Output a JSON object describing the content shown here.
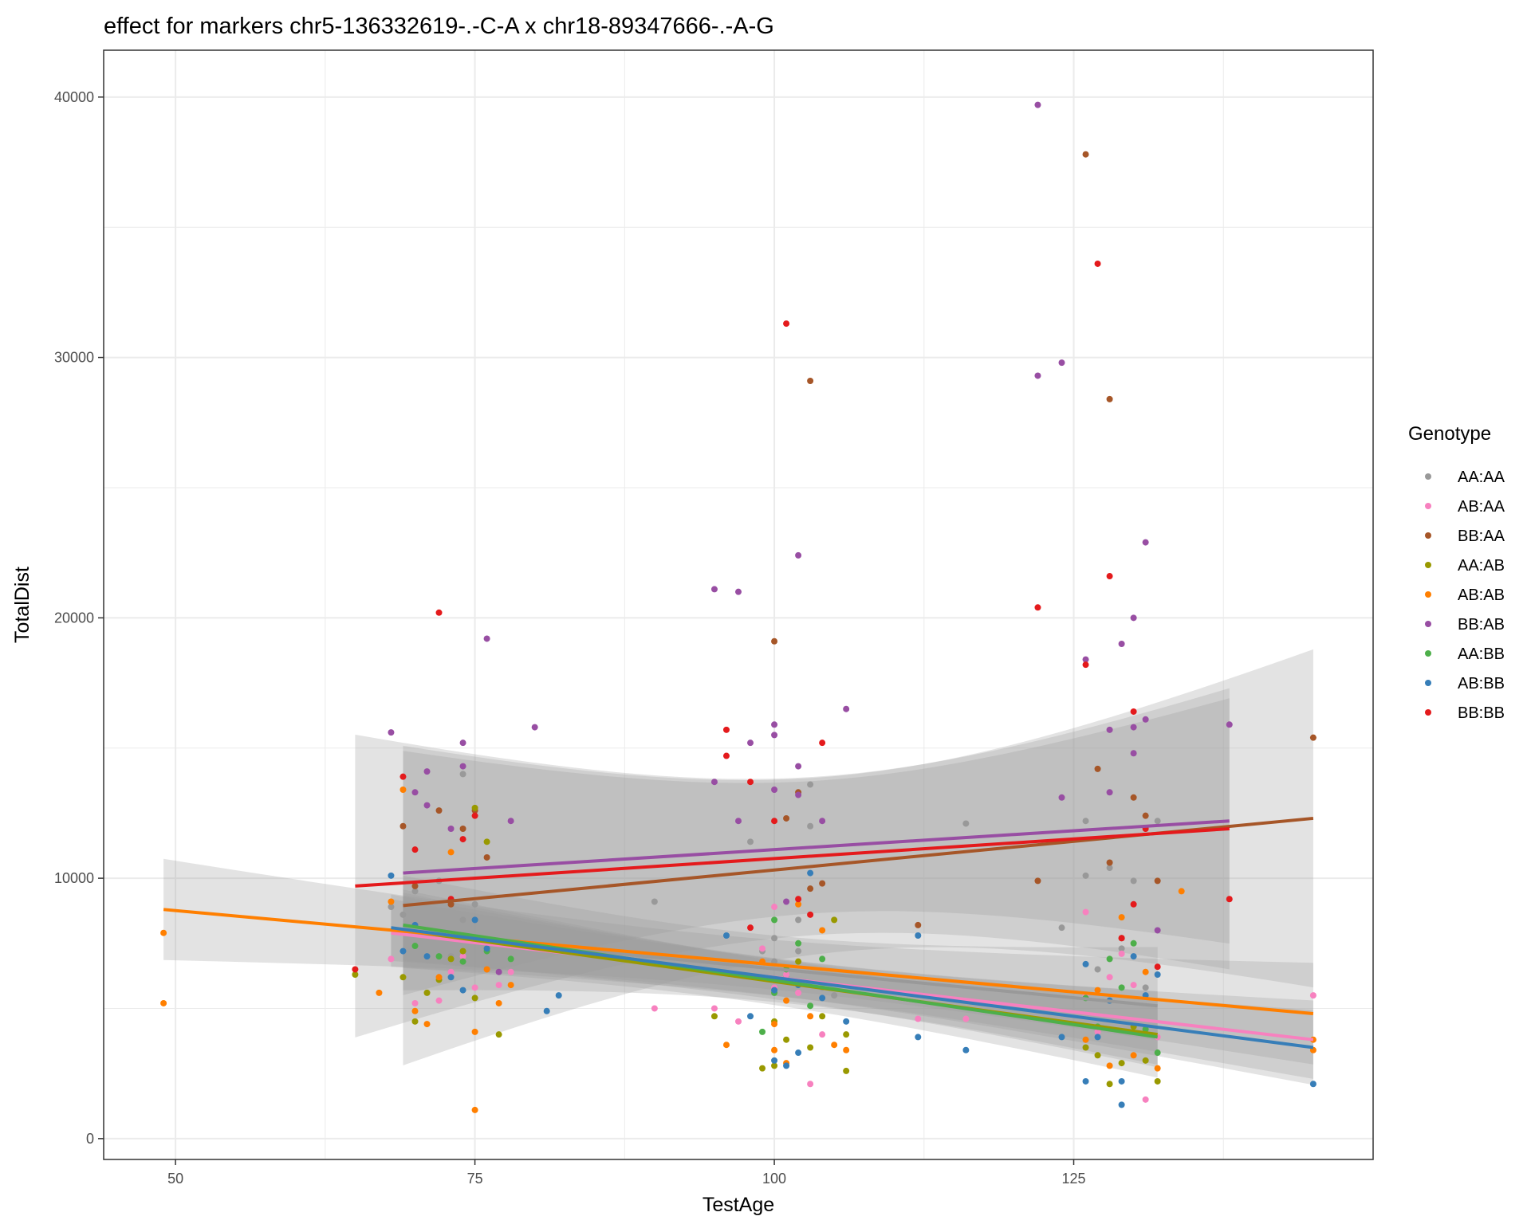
{
  "chart_data": {
    "type": "scatter",
    "title": "effect for markers chr5-136332619-.-C-A x chr18-89347666-.-A-G",
    "xlabel": "TestAge",
    "ylabel": "TotalDist",
    "xlim": [
      44,
      150
    ],
    "ylim": [
      -800,
      41800
    ],
    "x_ticks": [
      50,
      75,
      100,
      125
    ],
    "y_ticks": [
      0,
      10000,
      20000,
      30000,
      40000
    ],
    "grid": true,
    "legend": {
      "title": "Genotype",
      "position": "right"
    },
    "series": [
      {
        "name": "AA:AA",
        "color": "#999999",
        "points": [
          [
            68,
            8900
          ],
          [
            69,
            8600
          ],
          [
            70,
            9500
          ],
          [
            71,
            7800
          ],
          [
            72,
            9900
          ],
          [
            73,
            7000
          ],
          [
            74,
            8400
          ],
          [
            74,
            14000
          ],
          [
            75,
            9000
          ],
          [
            76,
            7600
          ],
          [
            90,
            9100
          ],
          [
            98,
            11400
          ],
          [
            99,
            7200
          ],
          [
            100,
            7700
          ],
          [
            100,
            6800
          ],
          [
            101,
            6200
          ],
          [
            102,
            8400
          ],
          [
            102,
            7200
          ],
          [
            103,
            13600
          ],
          [
            103,
            12000
          ],
          [
            104,
            5800
          ],
          [
            105,
            5500
          ],
          [
            116,
            12100
          ],
          [
            124,
            8100
          ],
          [
            126,
            10100
          ],
          [
            126,
            12200
          ],
          [
            127,
            6500
          ],
          [
            128,
            10400
          ],
          [
            129,
            7300
          ],
          [
            130,
            9900
          ],
          [
            131,
            5800
          ],
          [
            132,
            12200
          ]
        ],
        "fit": {
          "x": [
            69,
            132
          ],
          "y": [
            7900,
            5100
          ]
        }
      },
      {
        "name": "AB:AA",
        "color": "#f781bf",
        "points": [
          [
            68,
            6900
          ],
          [
            70,
            5200
          ],
          [
            72,
            5300
          ],
          [
            73,
            6400
          ],
          [
            74,
            7000
          ],
          [
            75,
            5800
          ],
          [
            77,
            5900
          ],
          [
            78,
            6400
          ],
          [
            90,
            5000
          ],
          [
            95,
            5000
          ],
          [
            97,
            4500
          ],
          [
            99,
            7300
          ],
          [
            100,
            8900
          ],
          [
            100,
            5800
          ],
          [
            101,
            6300
          ],
          [
            102,
            5600
          ],
          [
            103,
            2100
          ],
          [
            104,
            4000
          ],
          [
            112,
            4600
          ],
          [
            116,
            4600
          ],
          [
            126,
            8700
          ],
          [
            126,
            5500
          ],
          [
            127,
            4100
          ],
          [
            128,
            6200
          ],
          [
            129,
            7100
          ],
          [
            130,
            5900
          ],
          [
            131,
            1500
          ],
          [
            132,
            3900
          ],
          [
            145,
            5500
          ]
        ],
        "fit": {
          "x": [
            68,
            145
          ],
          "y": [
            7900,
            3800
          ]
        }
      },
      {
        "name": "BB:AA",
        "color": "#a65628",
        "points": [
          [
            69,
            12000
          ],
          [
            70,
            9700
          ],
          [
            72,
            12600
          ],
          [
            73,
            9000
          ],
          [
            74,
            11900
          ],
          [
            75,
            12600
          ],
          [
            76,
            10800
          ],
          [
            100,
            19100
          ],
          [
            101,
            12300
          ],
          [
            102,
            13300
          ],
          [
            103,
            29100
          ],
          [
            103,
            9600
          ],
          [
            104,
            9800
          ],
          [
            112,
            8200
          ],
          [
            122,
            9900
          ],
          [
            126,
            37800
          ],
          [
            127,
            14200
          ],
          [
            128,
            28400
          ],
          [
            128,
            10600
          ],
          [
            129,
            7700
          ],
          [
            130,
            13100
          ],
          [
            131,
            12400
          ],
          [
            132,
            9900
          ],
          [
            145,
            15400
          ]
        ],
        "fit": {
          "x": [
            69,
            145
          ],
          "y": [
            8950,
            12300
          ]
        }
      },
      {
        "name": "AA:AB",
        "color": "#999900",
        "points": [
          [
            65,
            6300
          ],
          [
            69,
            6200
          ],
          [
            70,
            4500
          ],
          [
            71,
            5600
          ],
          [
            72,
            6100
          ],
          [
            73,
            6900
          ],
          [
            74,
            7200
          ],
          [
            75,
            5400
          ],
          [
            75,
            12700
          ],
          [
            76,
            11400
          ],
          [
            77,
            4000
          ],
          [
            95,
            4700
          ],
          [
            99,
            2700
          ],
          [
            100,
            2800
          ],
          [
            100,
            4500
          ],
          [
            101,
            3800
          ],
          [
            102,
            6800
          ],
          [
            103,
            3500
          ],
          [
            104,
            4700
          ],
          [
            105,
            8400
          ],
          [
            106,
            2600
          ],
          [
            106,
            4000
          ],
          [
            126,
            3500
          ],
          [
            127,
            3200
          ],
          [
            128,
            2100
          ],
          [
            129,
            2900
          ],
          [
            130,
            4300
          ],
          [
            131,
            3000
          ],
          [
            132,
            2200
          ]
        ],
        "fit": {
          "x": [
            69,
            132
          ],
          "y": [
            8000,
            4000
          ]
        }
      },
      {
        "name": "AB:AB",
        "color": "#ff7f00",
        "points": [
          [
            49,
            7900
          ],
          [
            49,
            5200
          ],
          [
            67,
            5600
          ],
          [
            68,
            9100
          ],
          [
            69,
            13400
          ],
          [
            70,
            4900
          ],
          [
            71,
            4400
          ],
          [
            72,
            6200
          ],
          [
            73,
            11000
          ],
          [
            74,
            7800
          ],
          [
            75,
            1100
          ],
          [
            75,
            4100
          ],
          [
            76,
            6500
          ],
          [
            77,
            5200
          ],
          [
            78,
            5900
          ],
          [
            96,
            3600
          ],
          [
            99,
            6800
          ],
          [
            100,
            4400
          ],
          [
            100,
            3400
          ],
          [
            101,
            5300
          ],
          [
            101,
            2900
          ],
          [
            102,
            9000
          ],
          [
            103,
            4700
          ],
          [
            104,
            8000
          ],
          [
            105,
            3600
          ],
          [
            106,
            3400
          ],
          [
            126,
            3800
          ],
          [
            127,
            5700
          ],
          [
            128,
            2800
          ],
          [
            129,
            8500
          ],
          [
            130,
            3200
          ],
          [
            131,
            6400
          ],
          [
            132,
            2700
          ],
          [
            134,
            9500
          ],
          [
            145,
            3800
          ],
          [
            145,
            3400
          ]
        ],
        "fit": {
          "x": [
            49,
            145
          ],
          "y": [
            8800,
            4800
          ]
        }
      },
      {
        "name": "BB:AB",
        "color": "#984ea3",
        "points": [
          [
            68,
            15600
          ],
          [
            70,
            13300
          ],
          [
            71,
            14100
          ],
          [
            71,
            12800
          ],
          [
            73,
            11900
          ],
          [
            74,
            15200
          ],
          [
            74,
            14300
          ],
          [
            76,
            19200
          ],
          [
            77,
            6400
          ],
          [
            78,
            12200
          ],
          [
            80,
            15800
          ],
          [
            95,
            21100
          ],
          [
            95,
            13700
          ],
          [
            97,
            21000
          ],
          [
            97,
            12200
          ],
          [
            98,
            15200
          ],
          [
            100,
            15500
          ],
          [
            100,
            15900
          ],
          [
            100,
            13400
          ],
          [
            101,
            9100
          ],
          [
            102,
            22400
          ],
          [
            102,
            14300
          ],
          [
            102,
            13200
          ],
          [
            104,
            12200
          ],
          [
            106,
            16500
          ],
          [
            122,
            39700
          ],
          [
            122,
            29300
          ],
          [
            124,
            29800
          ],
          [
            124,
            13100
          ],
          [
            126,
            18400
          ],
          [
            128,
            15700
          ],
          [
            128,
            13300
          ],
          [
            129,
            19000
          ],
          [
            130,
            20000
          ],
          [
            130,
            15800
          ],
          [
            130,
            14800
          ],
          [
            131,
            22900
          ],
          [
            131,
            16100
          ],
          [
            132,
            8000
          ],
          [
            138,
            15900
          ]
        ],
        "fit": {
          "x": [
            69,
            138
          ],
          "y": [
            10200,
            12200
          ]
        }
      },
      {
        "name": "AA:BB",
        "color": "#4daf4a",
        "points": [
          [
            70,
            7400
          ],
          [
            72,
            7000
          ],
          [
            74,
            6800
          ],
          [
            76,
            7200
          ],
          [
            78,
            6900
          ],
          [
            99,
            4100
          ],
          [
            100,
            8400
          ],
          [
            100,
            5600
          ],
          [
            101,
            6500
          ],
          [
            102,
            7500
          ],
          [
            103,
            5100
          ],
          [
            104,
            6900
          ],
          [
            126,
            5400
          ],
          [
            127,
            4300
          ],
          [
            128,
            6900
          ],
          [
            129,
            5800
          ],
          [
            130,
            7500
          ],
          [
            131,
            4200
          ],
          [
            132,
            3300
          ]
        ],
        "fit": {
          "x": [
            69,
            132
          ],
          "y": [
            8200,
            3900
          ]
        }
      },
      {
        "name": "AB:BB",
        "color": "#377eb8",
        "points": [
          [
            68,
            10100
          ],
          [
            69,
            7200
          ],
          [
            70,
            8200
          ],
          [
            71,
            7000
          ],
          [
            73,
            6200
          ],
          [
            74,
            5700
          ],
          [
            75,
            8400
          ],
          [
            76,
            7300
          ],
          [
            81,
            4900
          ],
          [
            82,
            5500
          ],
          [
            96,
            7800
          ],
          [
            98,
            4700
          ],
          [
            100,
            5700
          ],
          [
            100,
            3000
          ],
          [
            101,
            2800
          ],
          [
            102,
            3300
          ],
          [
            102,
            5900
          ],
          [
            103,
            10200
          ],
          [
            104,
            5400
          ],
          [
            106,
            4500
          ],
          [
            112,
            3900
          ],
          [
            112,
            7800
          ],
          [
            116,
            3400
          ],
          [
            124,
            3900
          ],
          [
            126,
            2200
          ],
          [
            126,
            6700
          ],
          [
            127,
            3900
          ],
          [
            128,
            5300
          ],
          [
            129,
            2200
          ],
          [
            129,
            1300
          ],
          [
            130,
            7000
          ],
          [
            131,
            5500
          ],
          [
            132,
            6300
          ],
          [
            145,
            2100
          ]
        ],
        "fit": {
          "x": [
            68,
            145
          ],
          "y": [
            8100,
            3500
          ]
        }
      },
      {
        "name": "BB:BB",
        "color": "#e41a1c",
        "points": [
          [
            65,
            6500
          ],
          [
            69,
            13900
          ],
          [
            70,
            11100
          ],
          [
            72,
            20200
          ],
          [
            73,
            9200
          ],
          [
            74,
            11500
          ],
          [
            75,
            12400
          ],
          [
            96,
            15700
          ],
          [
            96,
            14700
          ],
          [
            98,
            13700
          ],
          [
            98,
            8100
          ],
          [
            100,
            12200
          ],
          [
            101,
            31300
          ],
          [
            102,
            9200
          ],
          [
            103,
            8600
          ],
          [
            104,
            15200
          ],
          [
            122,
            20400
          ],
          [
            126,
            18200
          ],
          [
            127,
            33600
          ],
          [
            128,
            21600
          ],
          [
            129,
            7700
          ],
          [
            130,
            16400
          ],
          [
            130,
            9000
          ],
          [
            131,
            11900
          ],
          [
            132,
            6600
          ],
          [
            138,
            9200
          ]
        ],
        "fit": {
          "x": [
            65,
            138
          ],
          "y": [
            9700,
            11900
          ]
        }
      }
    ]
  }
}
